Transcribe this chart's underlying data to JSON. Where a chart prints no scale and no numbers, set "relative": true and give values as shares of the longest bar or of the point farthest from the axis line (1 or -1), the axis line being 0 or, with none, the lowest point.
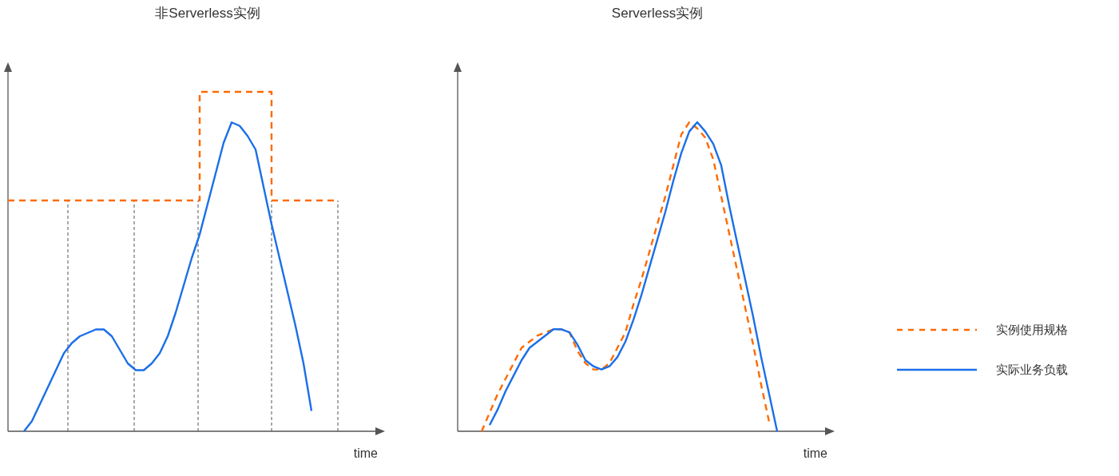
{
  "chart_data": [
    {
      "type": "line",
      "title": "非Serverless实例",
      "xlabel": "time",
      "relative": true,
      "categories": [
        null,
        null,
        null,
        null,
        null,
        null,
        null,
        null,
        null,
        null,
        null,
        null,
        null,
        null,
        null,
        null,
        null,
        null,
        null,
        null,
        null,
        null,
        null,
        null,
        null,
        null,
        null,
        null,
        null,
        null,
        null,
        null,
        null,
        null,
        null,
        null,
        null,
        null,
        null,
        null,
        null,
        null,
        null,
        null,
        null,
        null,
        null
      ],
      "series": [
        {
          "type": "step",
          "color": "#ff6a00",
          "line_style": "dashed",
          "values": [
            0.68,
            0.68,
            0.68,
            0.68,
            0.68,
            0.68,
            0.68,
            0.68,
            0.68,
            0.68,
            0.68,
            0.68,
            0.68,
            0.68,
            0.68,
            0.68,
            0.68,
            0.68,
            0.68,
            0.68,
            0.68,
            0.68,
            0.68,
            0.68,
            1,
            1,
            1,
            1,
            1,
            1,
            1,
            1,
            1,
            0.68,
            0.68,
            0.68,
            0.68,
            0.68,
            0.68,
            0.68,
            0.68,
            0.68,
            null,
            null,
            null,
            null,
            null
          ]
        },
        {
          "color": "#1a6fe8",
          "line_style": "solid",
          "values": [
            null,
            null,
            0,
            0.03,
            0.08,
            0.13,
            0.18,
            0.23,
            0.26,
            0.28,
            0.29,
            0.3,
            0.3,
            0.28,
            0.24,
            0.2,
            0.18,
            0.18,
            0.2,
            0.23,
            0.28,
            0.35,
            0.43,
            0.51,
            0.58,
            0.67,
            0.76,
            0.85,
            0.91,
            0.9,
            0.87,
            0.83,
            0.72,
            0.61,
            0.51,
            0.41,
            0.31,
            0.2,
            0.06,
            null,
            null,
            null,
            null,
            null,
            null,
            null,
            null
          ]
        }
      ]
    },
    {
      "type": "line",
      "title": "Serverless实例",
      "xlabel": "time",
      "relative": true,
      "legend": "right",
      "categories": [
        null,
        null,
        null,
        null,
        null,
        null,
        null,
        null,
        null,
        null,
        null,
        null,
        null,
        null,
        null,
        null,
        null,
        null,
        null,
        null,
        null,
        null,
        null,
        null,
        null,
        null,
        null,
        null,
        null,
        null,
        null,
        null,
        null,
        null,
        null,
        null,
        null,
        null,
        null,
        null,
        null,
        null,
        null,
        null,
        null,
        null,
        null
      ],
      "series": [
        {
          "name": "实例使用规格",
          "color": "#ff6a00",
          "line_style": "dashed",
          "values": [
            null,
            null,
            null,
            0,
            0.06,
            0.12,
            0.17,
            0.22,
            0.27,
            0.29,
            0.31,
            0.32,
            0.33,
            0.33,
            0.32,
            0.26,
            0.22,
            0.2,
            0.2,
            0.22,
            0.27,
            0.32,
            0.41,
            0.49,
            0.58,
            0.67,
            0.76,
            0.86,
            0.96,
            1.0,
            0.98,
            0.95,
            0.88,
            0.76,
            0.64,
            0.52,
            0.4,
            0.28,
            0.15,
            0.03,
            null,
            null,
            null,
            null,
            null,
            null,
            null
          ]
        },
        {
          "name": "实际业务负载",
          "color": "#1a6fe8",
          "line_style": "solid",
          "values": [
            null,
            null,
            null,
            null,
            0.02,
            0.07,
            0.13,
            0.18,
            0.23,
            0.27,
            0.29,
            0.31,
            0.33,
            0.33,
            0.32,
            0.28,
            0.23,
            0.21,
            0.2,
            0.21,
            0.24,
            0.29,
            0.36,
            0.44,
            0.53,
            0.62,
            0.71,
            0.81,
            0.9,
            0.97,
            1.0,
            0.97,
            0.93,
            0.86,
            0.73,
            0.61,
            0.49,
            0.37,
            0.24,
            0.12,
            0,
            null,
            null,
            null,
            null,
            null,
            null
          ]
        }
      ]
    }
  ]
}
